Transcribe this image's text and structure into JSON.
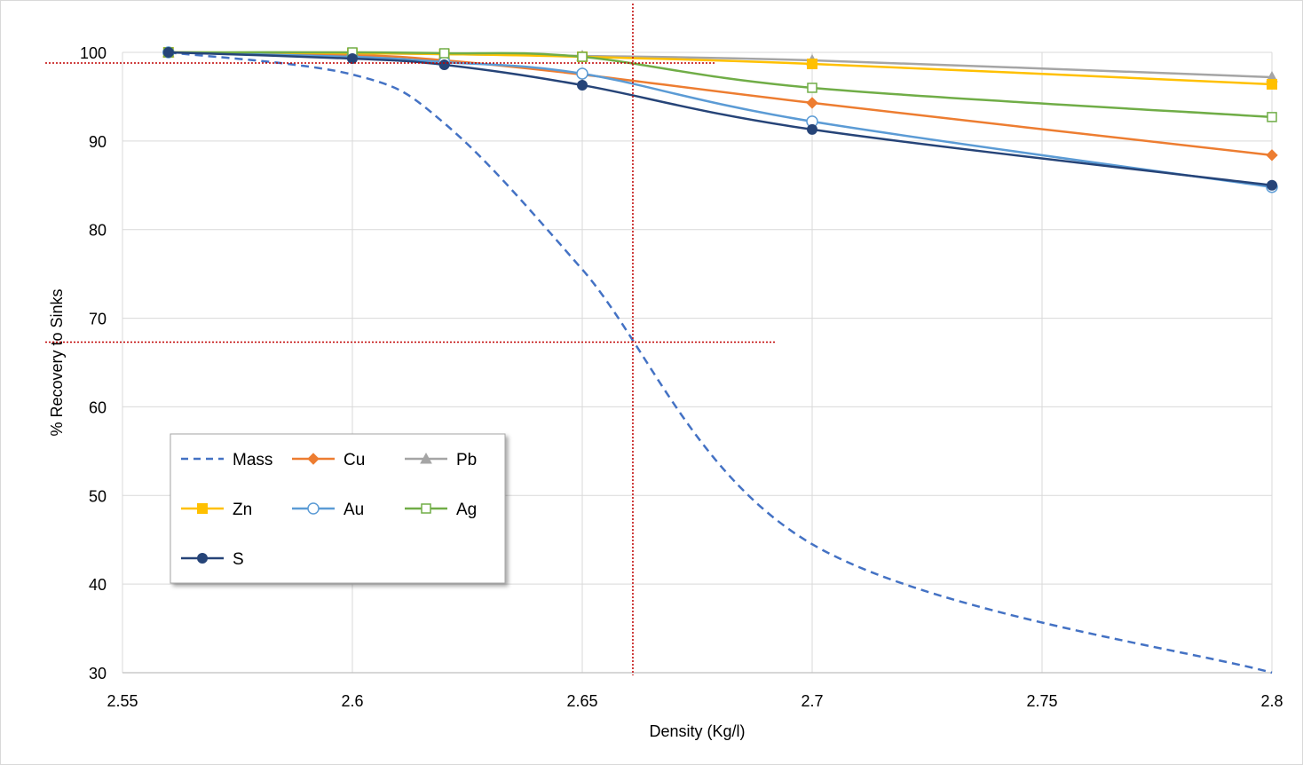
{
  "chart_data": {
    "type": "line",
    "xlabel": "Density (Kg/l)",
    "ylabel": "% Recovery to Sinks",
    "xlim": [
      2.55,
      2.8
    ],
    "ylim": [
      30,
      100
    ],
    "xticks": [
      "2.55",
      "2.6",
      "2.65",
      "2.7",
      "2.75",
      "2.8"
    ],
    "xtick_values": [
      2.55,
      2.6,
      2.65,
      2.7,
      2.75,
      2.8
    ],
    "yticks": [
      "30",
      "40",
      "50",
      "60",
      "70",
      "80",
      "90",
      "100"
    ],
    "ytick_values": [
      30,
      40,
      50,
      60,
      70,
      80,
      90,
      100
    ],
    "grid": true,
    "legend_position": "lower-left",
    "x": [
      2.56,
      2.6,
      2.62,
      2.65,
      2.7,
      2.8
    ],
    "series": [
      {
        "name": "Mass",
        "values": [
          100,
          97.5,
          92,
          75.5,
          44.5,
          30
        ],
        "color": "#4472c4",
        "dash": true,
        "marker": "none"
      },
      {
        "name": "Cu",
        "values": [
          100,
          99.7,
          99.1,
          97.5,
          94.3,
          88.4
        ],
        "color": "#ed7d31",
        "dash": false,
        "marker": "diamond"
      },
      {
        "name": "Pb",
        "values": [
          100,
          99.9,
          99.8,
          99.6,
          99.1,
          97.2
        ],
        "color": "#a5a5a5",
        "dash": false,
        "marker": "triangle"
      },
      {
        "name": "Zn",
        "values": [
          100,
          99.9,
          99.8,
          99.5,
          98.7,
          96.4
        ],
        "color": "#ffc000",
        "dash": false,
        "marker": "square"
      },
      {
        "name": "Au",
        "values": [
          100,
          99.5,
          98.9,
          97.6,
          92.2,
          84.8
        ],
        "color": "#5b9bd5",
        "dash": false,
        "marker": "circle-open"
      },
      {
        "name": "Ag",
        "values": [
          100,
          100,
          99.9,
          99.5,
          96,
          92.7
        ],
        "color": "#70ad47",
        "dash": false,
        "marker": "square-open"
      },
      {
        "name": "S",
        "values": [
          100,
          99.3,
          98.6,
          96.3,
          91.3,
          85
        ],
        "color": "#264478",
        "dash": false,
        "marker": "circle"
      }
    ],
    "reference_lines": {
      "color": "#c00000",
      "vertical_x": 2.661,
      "horizontal_y": [
        98.8,
        67.3
      ]
    }
  }
}
